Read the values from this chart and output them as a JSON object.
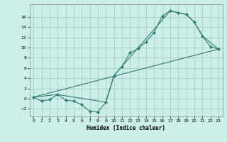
{
  "title": "",
  "xlabel": "Humidex (Indice chaleur)",
  "bg_color": "#cceee8",
  "grid_color": "#aacccc",
  "line_color": "#2e7d6e",
  "xlim": [
    -0.5,
    23.5
  ],
  "ylim": [
    -3.5,
    18.5
  ],
  "xticks": [
    0,
    1,
    2,
    3,
    4,
    5,
    6,
    7,
    8,
    9,
    10,
    11,
    12,
    13,
    14,
    15,
    16,
    17,
    18,
    19,
    20,
    21,
    22,
    23
  ],
  "yticks": [
    -2,
    0,
    2,
    4,
    6,
    8,
    10,
    12,
    14,
    16
  ],
  "line1_x": [
    0,
    1,
    2,
    3,
    4,
    5,
    6,
    7,
    8,
    9,
    10,
    11,
    12,
    13,
    14,
    15,
    16,
    17,
    18,
    19,
    20,
    21,
    22,
    23
  ],
  "line1_y": [
    0.3,
    -0.5,
    -0.2,
    0.8,
    -0.3,
    -0.5,
    -1.2,
    -2.5,
    -2.6,
    -0.7,
    4.5,
    6.3,
    9.0,
    9.8,
    11.1,
    13.0,
    16.2,
    17.2,
    16.8,
    16.5,
    15.0,
    12.3,
    10.2,
    9.7
  ],
  "line2_x": [
    0,
    3,
    9,
    10,
    17,
    19,
    20,
    21,
    23
  ],
  "line2_y": [
    0.3,
    0.8,
    -0.7,
    4.5,
    17.2,
    16.5,
    15.0,
    12.3,
    9.7
  ],
  "line3_x": [
    0,
    23
  ],
  "line3_y": [
    0.3,
    9.7
  ]
}
